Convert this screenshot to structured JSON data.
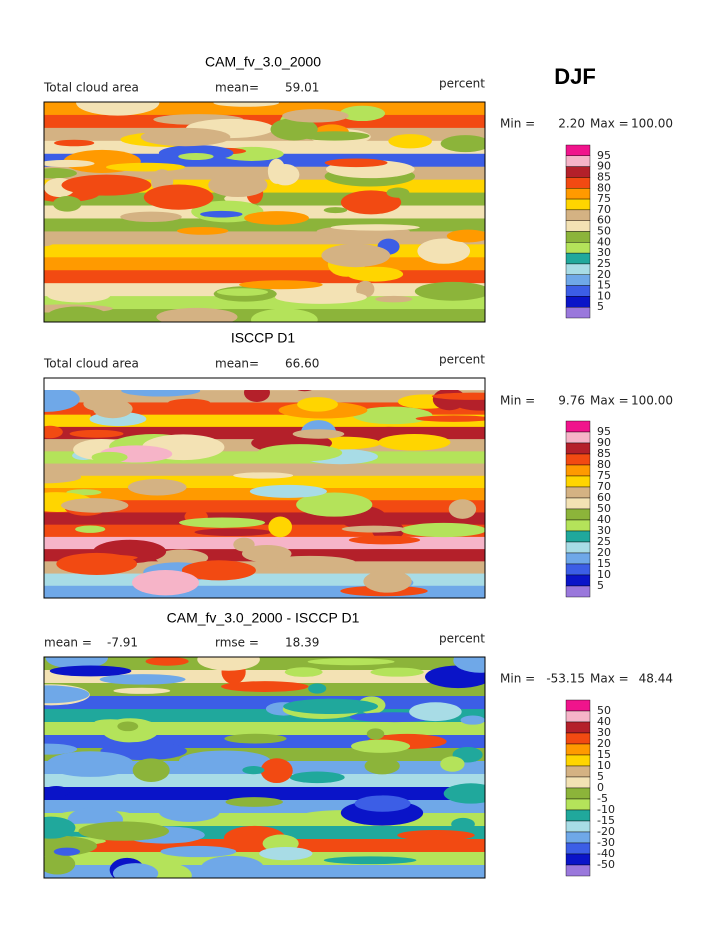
{
  "header": {
    "season": "DJF"
  },
  "panels": [
    {
      "title": "CAM_fv_3.0_2000",
      "left_label": "Total cloud area",
      "stats": [
        {
          "label": "mean=",
          "value": "59.01"
        }
      ],
      "units": "percent",
      "min_label": "Min =",
      "min_value": "2.20",
      "max_label": "Max =",
      "max_value": "100.00",
      "colorbar": {
        "labels": [
          95,
          90,
          85,
          80,
          75,
          70,
          60,
          50,
          40,
          30,
          25,
          20,
          15,
          10,
          5
        ],
        "colors": [
          "#f0148c",
          "#f6b4c8",
          "#b4202a",
          "#f24a12",
          "#ff9a00",
          "#ffd500",
          "#d4b283",
          "#f3e2b4",
          "#8cb43a",
          "#b4e35a",
          "#20a89c",
          "#a8dce6",
          "#6fa8e8",
          "#3c5ee6",
          "#0a14c8",
          "#9a78dc"
        ]
      }
    },
    {
      "title": "ISCCP D1",
      "left_label": "Total cloud area",
      "stats": [
        {
          "label": "mean=",
          "value": "66.60"
        }
      ],
      "units": "percent",
      "min_label": "Min =",
      "min_value": "9.76",
      "max_label": "Max =",
      "max_value": "100.00",
      "colorbar": {
        "labels": [
          95,
          90,
          85,
          80,
          75,
          70,
          60,
          50,
          40,
          30,
          25,
          20,
          15,
          10,
          5
        ],
        "colors": [
          "#f0148c",
          "#f6b4c8",
          "#b4202a",
          "#f24a12",
          "#ff9a00",
          "#ffd500",
          "#d4b283",
          "#f3e2b4",
          "#8cb43a",
          "#b4e35a",
          "#20a89c",
          "#a8dce6",
          "#6fa8e8",
          "#3c5ee6",
          "#0a14c8",
          "#9a78dc"
        ]
      }
    },
    {
      "title": "CAM_fv_3.0_2000 - ISCCP D1",
      "stats": [
        {
          "label": "mean =",
          "value": "-7.91"
        },
        {
          "label": "rmse =",
          "value": "18.39"
        }
      ],
      "units": "percent",
      "min_label": "Min =",
      "min_value": "-53.15",
      "max_label": "Max =",
      "max_value": "48.44",
      "colorbar": {
        "labels": [
          50,
          40,
          30,
          20,
          15,
          10,
          5,
          0,
          -5,
          -10,
          -15,
          -20,
          -30,
          -40,
          -50
        ],
        "colors": [
          "#f0148c",
          "#f6b4c8",
          "#b4202a",
          "#f24a12",
          "#ff9a00",
          "#ffd500",
          "#d4b283",
          "#f3e2b4",
          "#8cb43a",
          "#b4e35a",
          "#20a89c",
          "#a8dce6",
          "#6fa8e8",
          "#3c5ee6",
          "#0a14c8",
          "#9a78dc"
        ]
      }
    }
  ]
}
